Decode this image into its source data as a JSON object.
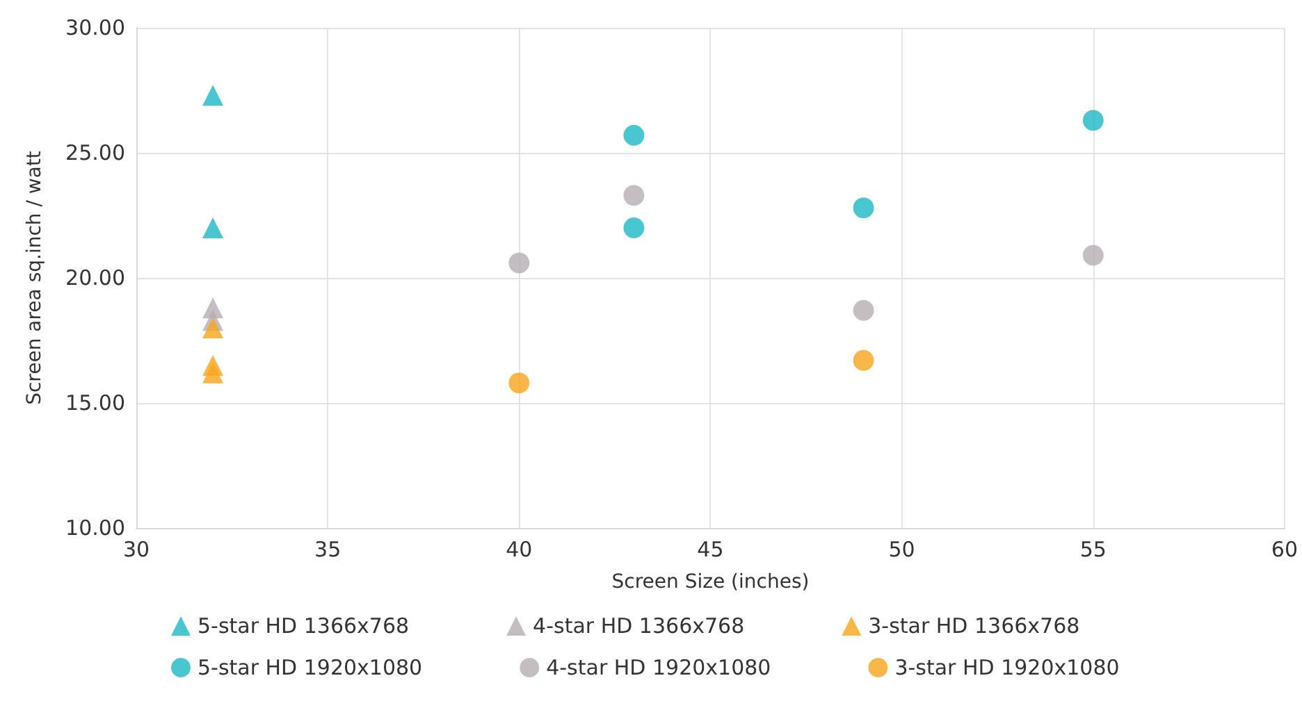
{
  "chart_data": {
    "type": "scatter",
    "xlabel": "Screen Size (inches)",
    "ylabel": "Screen area sq.inch / watt",
    "xlim": [
      30,
      60
    ],
    "xticks": [
      30,
      35,
      40,
      45,
      50,
      55,
      60
    ],
    "ylim": [
      10,
      30
    ],
    "yticks": [
      {
        "value": 10,
        "label": "10.00"
      },
      {
        "value": 15,
        "label": "15.00"
      },
      {
        "value": 20,
        "label": "20.00"
      },
      {
        "value": 25,
        "label": "25.00"
      },
      {
        "value": 30,
        "label": "30.00"
      }
    ],
    "grid": true,
    "legend": "bottom",
    "series": [
      {
        "name": "5-star HD 1366x768",
        "color": "#1bb8c4",
        "marker": "triangle",
        "x": [
          32,
          32
        ],
        "values": [
          27.3,
          22.0
        ]
      },
      {
        "name": "4-star HD 1366x768",
        "color": "#b5adb2",
        "marker": "triangle",
        "x": [
          32,
          32
        ],
        "values": [
          18.8,
          18.3
        ]
      },
      {
        "name": "3-star HD 1366x768",
        "color": "#f9a51b",
        "marker": "triangle",
        "x": [
          32,
          32,
          32
        ],
        "values": [
          18.0,
          16.5,
          16.2
        ]
      },
      {
        "name": "5-star HD 1920x1080",
        "color": "#1bb8c4",
        "marker": "circle",
        "x": [
          43,
          43,
          49,
          55
        ],
        "values": [
          25.7,
          22.0,
          22.8,
          26.3
        ]
      },
      {
        "name": "4-star HD 1920x1080",
        "color": "#b5adb2",
        "marker": "circle",
        "x": [
          40,
          43,
          49,
          55
        ],
        "values": [
          20.6,
          23.3,
          18.7,
          20.9
        ]
      },
      {
        "name": "3-star HD 1920x1080",
        "color": "#f9a51b",
        "marker": "circle",
        "x": [
          40,
          49
        ],
        "values": [
          15.8,
          16.7
        ]
      }
    ]
  }
}
